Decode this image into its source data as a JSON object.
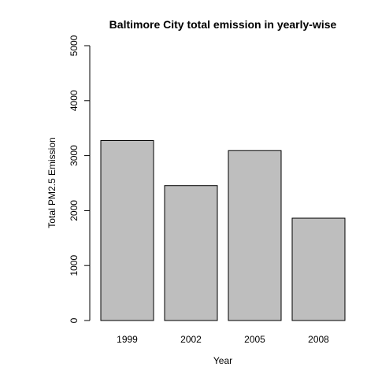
{
  "chart_data": {
    "type": "bar",
    "title": "Baltimore City total emission in yearly-wise",
    "xlabel": "Year",
    "ylabel": "Total PM2.5 Emission",
    "categories": [
      "1999",
      "2002",
      "2005",
      "2008"
    ],
    "values": [
      3274,
      2454,
      3091,
      1862
    ],
    "ylim": [
      0,
      5000
    ],
    "yticks": [
      0,
      1000,
      2000,
      3000,
      4000,
      5000
    ],
    "grid": false,
    "legend": "none",
    "colors": {
      "bar_fill": "#bebebe",
      "bar_stroke": "#000000",
      "axis": "#000000",
      "background": "#ffffff"
    }
  }
}
